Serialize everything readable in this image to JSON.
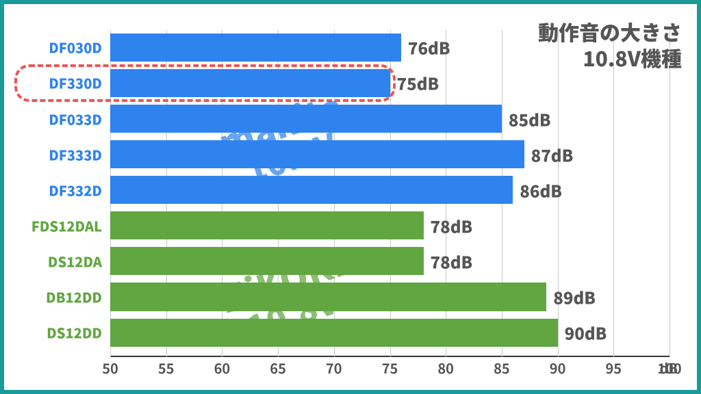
{
  "frame": {
    "border_color": "#1b9a9a"
  },
  "title": {
    "line1": "動作音の大きさ",
    "line2": "10.8V機種"
  },
  "axis": {
    "xmin": 50,
    "xmax": 100,
    "xstep": 5,
    "grid_color": "#c8c8c8",
    "unit_label": "dB",
    "ticks": [
      50,
      55,
      60,
      65,
      70,
      75,
      80,
      85,
      90,
      95,
      100
    ]
  },
  "layout": {
    "row_height_pct": 8.6,
    "row_gap_pct": 2.3,
    "top_pad_pct": 1
  },
  "colors": {
    "makita": "#2f83ee",
    "hikoki": "#61a641",
    "highlight": "#e95757"
  },
  "bars": [
    {
      "label": "DF030D",
      "value": 76,
      "group": "makita"
    },
    {
      "label": "DF330D",
      "value": 75,
      "group": "makita",
      "highlight": true
    },
    {
      "label": "DF033D",
      "value": 85,
      "group": "makita"
    },
    {
      "label": "DF333D",
      "value": 87,
      "group": "makita"
    },
    {
      "label": "DF332D",
      "value": 86,
      "group": "makita"
    },
    {
      "label": "FDS12DAL",
      "value": 78,
      "group": "hikoki"
    },
    {
      "label": "DS12DA",
      "value": 78,
      "group": "hikoki"
    },
    {
      "label": "DB12DD",
      "value": 89,
      "group": "hikoki"
    },
    {
      "label": "DS12DD",
      "value": 90,
      "group": "hikoki"
    }
  ],
  "value_suffix": "dB",
  "watermarks": [
    {
      "line1": "makita",
      "line2": "10.8V",
      "group": "makita",
      "center_row": 2.0
    },
    {
      "line1": "HiKOKI",
      "line2": "10.8V",
      "group": "hikoki",
      "center_row": 6.4
    }
  ]
}
